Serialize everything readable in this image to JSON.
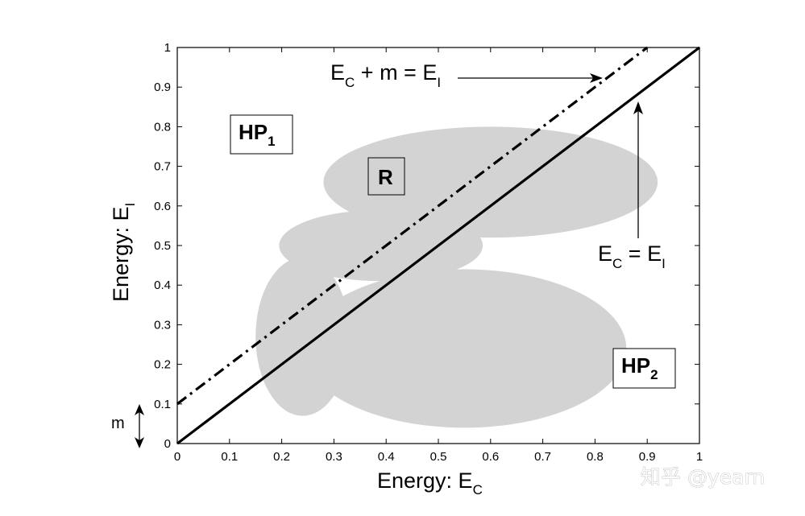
{
  "chart_data": {
    "type": "line",
    "xlabel": "Energy: E",
    "xlabel_sub": "C",
    "ylabel": "Energy: E",
    "ylabel_sub": "I",
    "xlim": [
      0,
      1
    ],
    "ylim": [
      0,
      1
    ],
    "grid": false,
    "x_ticks": [
      "0",
      "0.1",
      "0.2",
      "0.3",
      "0.4",
      "0.5",
      "0.6",
      "0.7",
      "0.8",
      "0.9",
      "1"
    ],
    "y_ticks": [
      "0",
      "0.1",
      "0.2",
      "0.3",
      "0.4",
      "0.5",
      "0.6",
      "0.7",
      "0.8",
      "0.9",
      "1"
    ],
    "series": [
      {
        "style": "solid",
        "color": "#000000",
        "x": [
          0,
          1
        ],
        "y": [
          0,
          1
        ]
      },
      {
        "style": "dash-dot",
        "color": "#000000",
        "x": [
          0,
          0.9
        ],
        "y": [
          0.1,
          1
        ]
      }
    ],
    "region": {
      "color": "#d3d3d3",
      "ellipses": [
        {
          "cx": 0.55,
          "cy": 0.24,
          "rx": 0.31,
          "ry": 0.2
        },
        {
          "cx": 0.24,
          "cy": 0.27,
          "rx": 0.09,
          "ry": 0.2
        },
        {
          "cx": 0.39,
          "cy": 0.5,
          "rx": 0.195,
          "ry": 0.09
        },
        {
          "cx": 0.6,
          "cy": 0.66,
          "rx": 0.32,
          "ry": 0.14
        }
      ]
    },
    "annotations": {
      "dashdot_label": {
        "main": "E",
        "sub1": "C",
        "mid": " + m = E",
        "sub2": "I"
      },
      "solid_label": {
        "main": "E",
        "sub1": "C",
        "mid": " = E",
        "sub2": "I"
      },
      "m_label": "m",
      "hp1": {
        "text": "HP",
        "sub": "1"
      },
      "hp2": {
        "text": "HP",
        "sub": "2"
      },
      "r": "R"
    }
  },
  "watermark": "知乎 @yearn"
}
